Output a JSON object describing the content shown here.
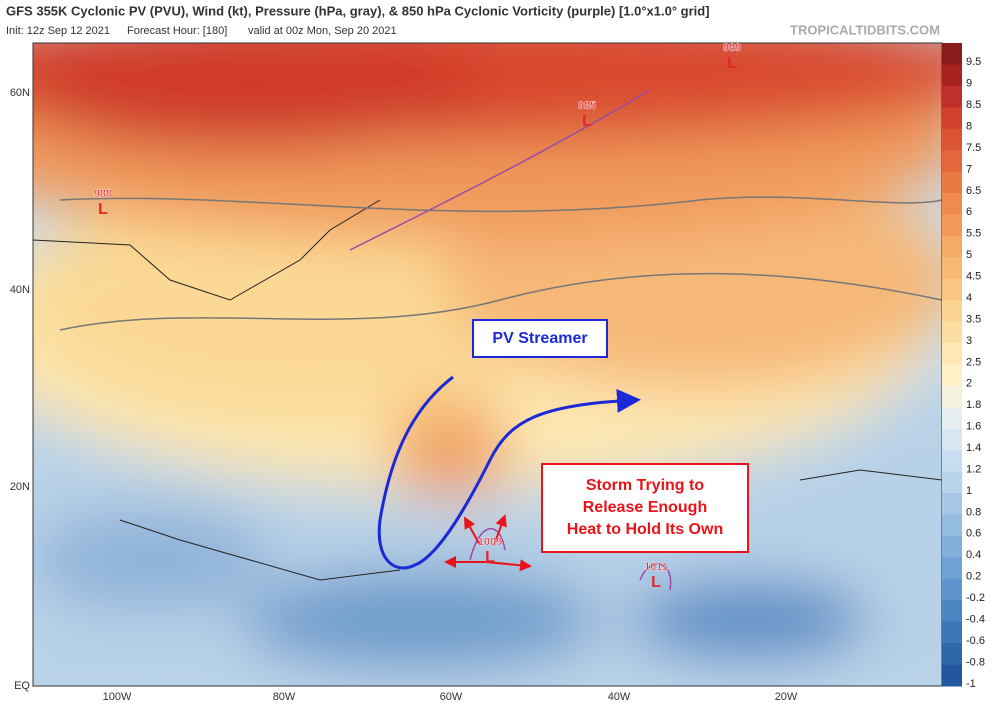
{
  "header": {
    "title": "GFS 355K Cyclonic PV (PVU), Wind (kt), Pressure (hPa, gray), & 850 hPa Cyclonic Vorticity (purple) [1.0°x1.0° grid]",
    "init": "Init: 12z Sep 12 2021",
    "forecast_hour": "Forecast Hour: [180]",
    "valid": "valid at 00z Mon, Sep 20 2021",
    "watermark": "TROPICALTIDBITS.COM"
  },
  "axes": {
    "lat_labels": [
      "60N",
      "40N",
      "20N",
      "EQ"
    ],
    "lon_labels": [
      "100W",
      "80W",
      "60W",
      "40W",
      "20W"
    ]
  },
  "colorbar": {
    "labels": [
      "9.5",
      "9",
      "8.5",
      "8",
      "7.5",
      "7",
      "6.5",
      "6",
      "5.5",
      "5",
      "4.5",
      "4",
      "3.5",
      "3",
      "2.5",
      "2",
      "1.8",
      "1.6",
      "1.4",
      "1.2",
      "1",
      "0.8",
      "0.6",
      "0.4",
      "0.2",
      "-0.2",
      "-0.4",
      "-0.6",
      "-0.8",
      "-1"
    ]
  },
  "lows": [
    {
      "pressure": "988",
      "symbol": "L"
    },
    {
      "pressure": "985",
      "symbol": "L"
    },
    {
      "pressure": "989",
      "symbol": "L"
    },
    {
      "pressure": "1009",
      "symbol": "L"
    },
    {
      "pressure": "1011",
      "symbol": "L"
    }
  ],
  "annotations": {
    "pv_streamer": "PV Streamer",
    "storm": [
      "Storm Trying to",
      "Release Enough",
      "Heat to Hold Its Own"
    ]
  }
}
